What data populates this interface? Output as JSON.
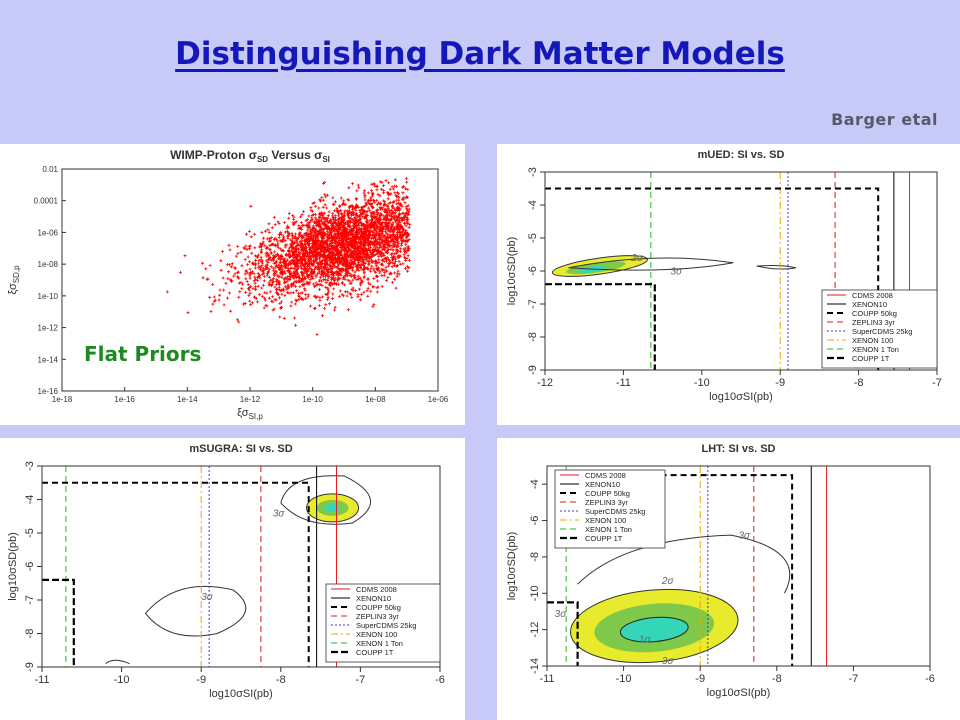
{
  "slide": {
    "title": "Distinguishing Dark Matter Models",
    "credit": "Barger etal",
    "flat_priors_label": "Flat Priors"
  },
  "chart_data": [
    {
      "type": "scatter",
      "title_main": "WIMP-Proton σ",
      "title_sub1": "SD",
      "title_mid": " Versus σ",
      "title_sub2": "SI",
      "ylabel_main": "ξσ",
      "ylabel_sub": "SD,p",
      "xlabel_main": "ξσ",
      "xlabel_sub": "SI,p",
      "xscale": "log",
      "yscale": "log",
      "xlim": [
        1e-18,
        1e-06
      ],
      "ylim": [
        1e-16,
        0.01
      ],
      "xticks": [
        "1e-18",
        "1e-16",
        "1e-14",
        "1e-12",
        "1e-10",
        "1e-08",
        "1e-06"
      ],
      "yticks": [
        "1e-16",
        "1e-14",
        "1e-12",
        "1e-10",
        "1e-08",
        "1e-06",
        "0.0001",
        "0.01"
      ],
      "color": "#ff0000",
      "distribution": {
        "log10_x_range": [
          -16.0,
          -6.8
        ],
        "log10_y_range": [
          -15.5,
          -2.5
        ],
        "density_peak_log10": [
          -9.0,
          -6.5
        ]
      }
    },
    {
      "type": "line",
      "title": "mUED: SI vs. SD",
      "xlabel": "log10σSI(pb)",
      "ylabel": "log10σSD(pb)",
      "xlim": [
        -12,
        -7
      ],
      "ylim": [
        -9,
        -3
      ],
      "xticks": [
        "-12",
        "-11",
        "-10",
        "-9",
        "-8",
        "-7"
      ],
      "yticks": [
        "-9",
        "-8",
        "-7",
        "-6",
        "-5",
        "-4",
        "-3"
      ],
      "contour_labels": [
        "2σ",
        "3σ"
      ],
      "limits_x": [
        {
          "name": "CDMS 2008",
          "x": -7.35,
          "color": "#e31a1c",
          "dash": "solid"
        },
        {
          "name": "XENON10",
          "x": -7.55,
          "color": "#000000",
          "dash": "solid"
        },
        {
          "name": "ZEPLIN3 3yr",
          "x": -8.3,
          "color": "#e31a1c",
          "dash": "dashed"
        },
        {
          "name": "SuperCDMS 25kg",
          "x": -8.9,
          "color": "#3b3bd6",
          "dash": "dotted"
        },
        {
          "name": "XENON 100",
          "x": -9.0,
          "color": "#f4a300",
          "dash": "dashdot"
        },
        {
          "name": "XENON 1 Ton",
          "x": -10.65,
          "color": "#22bb22",
          "dash": "dashed"
        }
      ],
      "coupp_50kg": [
        [
          -12,
          -3.5
        ],
        [
          -7.75,
          -3.5
        ],
        [
          -7.75,
          -9
        ]
      ],
      "coupp_1t": [
        [
          -12,
          -6.4
        ],
        [
          -10.6,
          -6.4
        ],
        [
          -10.6,
          -9
        ]
      ],
      "legend": [
        "CDMS 2008",
        "XENON10",
        "COUPP 50kg",
        "ZEPLIN3 3yr",
        "SuperCDMS 25kg",
        "XENON 100",
        "XENON 1 Ton",
        "COUPP 1T"
      ],
      "legend_position": "bottom-right"
    },
    {
      "type": "line",
      "title": "mSUGRA: SI vs. SD",
      "xlabel": "log10σSI(pb)",
      "ylabel": "log10σSD(pb)",
      "xlim": [
        -11,
        -6
      ],
      "ylim": [
        -9,
        -3
      ],
      "xticks": [
        "-11",
        "-10",
        "-9",
        "-8",
        "-7",
        "-6"
      ],
      "yticks": [
        "-9",
        "-8",
        "-7",
        "-6",
        "-5",
        "-4",
        "-3"
      ],
      "contour_labels": [
        "3σ",
        "3σ"
      ],
      "limits_x": [
        {
          "name": "CDMS 2008",
          "x": -7.3,
          "color": "#e31a1c",
          "dash": "solid"
        },
        {
          "name": "XENON10",
          "x": -7.55,
          "color": "#000000",
          "dash": "solid"
        },
        {
          "name": "ZEPLIN3 3yr",
          "x": -8.25,
          "color": "#e31a1c",
          "dash": "dashed"
        },
        {
          "name": "SuperCDMS 25kg",
          "x": -8.9,
          "color": "#3b3bd6",
          "dash": "dotted"
        },
        {
          "name": "XENON 100",
          "x": -9.0,
          "color": "#f4a300",
          "dash": "dashdot"
        },
        {
          "name": "XENON 1 Ton",
          "x": -10.7,
          "color": "#22bb22",
          "dash": "dashed"
        }
      ],
      "coupp_50kg": [
        [
          -11,
          -3.5
        ],
        [
          -7.65,
          -3.5
        ],
        [
          -7.65,
          -9
        ]
      ],
      "coupp_1t": [
        [
          -11,
          -6.4
        ],
        [
          -10.6,
          -6.4
        ],
        [
          -10.6,
          -9
        ]
      ],
      "legend": [
        "CDMS 2008",
        "XENON10",
        "COUPP 50kg",
        "ZEPLIN3 3yr",
        "SuperCDMS 25kg",
        "XENON 100",
        "XENON 1 Ton",
        "COUPP 1T"
      ],
      "legend_position": "bottom-right"
    },
    {
      "type": "line",
      "title": "LHT: SI vs. SD",
      "xlabel": "log10σSI(pb)",
      "ylabel": "log10σSD(pb)",
      "xlim": [
        -11,
        -6
      ],
      "ylim": [
        -14,
        -3
      ],
      "xticks": [
        "-11",
        "-10",
        "-9",
        "-8",
        "-7",
        "-6"
      ],
      "yticks": [
        "-14",
        "-12",
        "-10",
        "-8",
        "-6",
        "-4"
      ],
      "contour_labels": [
        "1σ",
        "2σ",
        "3σ",
        "3σ",
        "3σ"
      ],
      "limits_x": [
        {
          "name": "CDMS 2008",
          "x": -7.35,
          "color": "#e31a1c",
          "dash": "solid"
        },
        {
          "name": "XENON10",
          "x": -7.55,
          "color": "#000000",
          "dash": "solid"
        },
        {
          "name": "ZEPLIN3 3yr",
          "x": -8.3,
          "color": "#e31a1c",
          "dash": "dashed"
        },
        {
          "name": "SuperCDMS 25kg",
          "x": -8.9,
          "color": "#3b3bd6",
          "dash": "dotted"
        },
        {
          "name": "XENON 100",
          "x": -9.0,
          "color": "#f4a300",
          "dash": "dashdot"
        },
        {
          "name": "XENON 1 Ton",
          "x": -10.75,
          "color": "#22bb22",
          "dash": "dashed"
        }
      ],
      "coupp_50kg": [
        [
          -10.3,
          -3.5
        ],
        [
          -7.8,
          -3.5
        ],
        [
          -7.8,
          -14
        ]
      ],
      "coupp_1t": [
        [
          -11,
          -10.5
        ],
        [
          -10.6,
          -10.5
        ],
        [
          -10.6,
          -14
        ]
      ],
      "legend": [
        "CDMS 2008",
        "XENON10",
        "COUPP 50kg",
        "ZEPLIN3 3yr",
        "SuperCDMS 25kg",
        "XENON 100",
        "XENON 1 Ton",
        "COUPP 1T"
      ],
      "legend_position": "top-left"
    }
  ]
}
